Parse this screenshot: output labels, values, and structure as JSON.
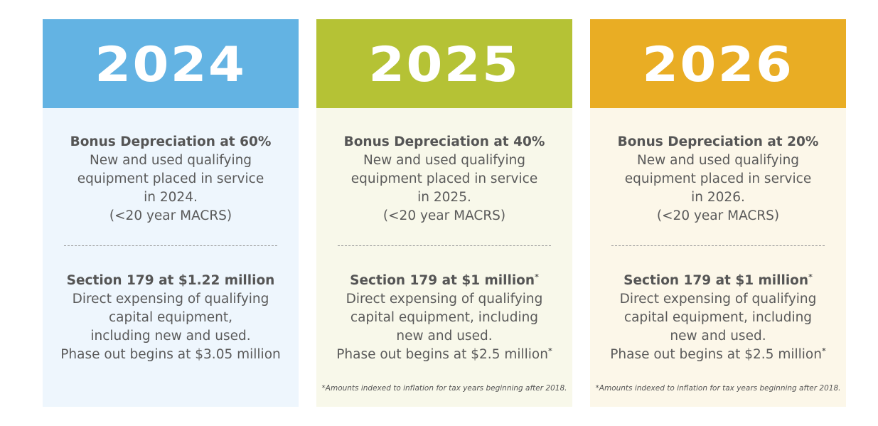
{
  "colors": {
    "card_2024_header": "#63b3e3",
    "card_2024_body": "#eef6fd",
    "card_2025_header": "#b5c235",
    "card_2025_body": "#f8f8ea",
    "card_2026_header": "#e9ad24",
    "card_2026_body": "#fcf7e9",
    "text": "#5a5a5a"
  },
  "cards": [
    {
      "year": "2024",
      "bonus_title": "Bonus Depreciation at 60%",
      "bonus_lines": [
        "New and used qualifying",
        "equipment placed in service",
        "in 2024.",
        "(<20 year MACRS)"
      ],
      "section_title": "Section 179 at $1.22 million",
      "section_lines": [
        "Direct expensing of qualifying",
        "capital equipment,",
        "including new and used."
      ],
      "phase_out": "Phase out begins at $3.05 million",
      "footnote": ""
    },
    {
      "year": "2025",
      "bonus_title": "Bonus Depreciation at 40%",
      "bonus_lines": [
        "New and used qualifying",
        "equipment placed in service",
        "in 2025.",
        "(<20 year MACRS)"
      ],
      "section_title": "Section 179 at $1 million",
      "section_marker": "*",
      "section_lines": [
        "Direct expensing of qualifying",
        "capital equipment, including",
        "new and used."
      ],
      "phase_out": "Phase out begins at $2.5 million",
      "phase_marker": "*",
      "footnote": "*Amounts indexed to inflation for tax years beginning after 2018."
    },
    {
      "year": "2026",
      "bonus_title": "Bonus Depreciation at 20%",
      "bonus_lines": [
        "New and used qualifying",
        "equipment placed in service",
        "in 2026.",
        "(<20 year MACRS)"
      ],
      "section_title": "Section 179 at $1 million",
      "section_marker": "*",
      "section_lines": [
        "Direct expensing of qualifying",
        "capital equipment, including",
        "new and used."
      ],
      "phase_out": "Phase out begins at $2.5 million",
      "phase_marker": "*",
      "footnote": "*Amounts indexed to inflation for tax years beginning after 2018."
    }
  ]
}
